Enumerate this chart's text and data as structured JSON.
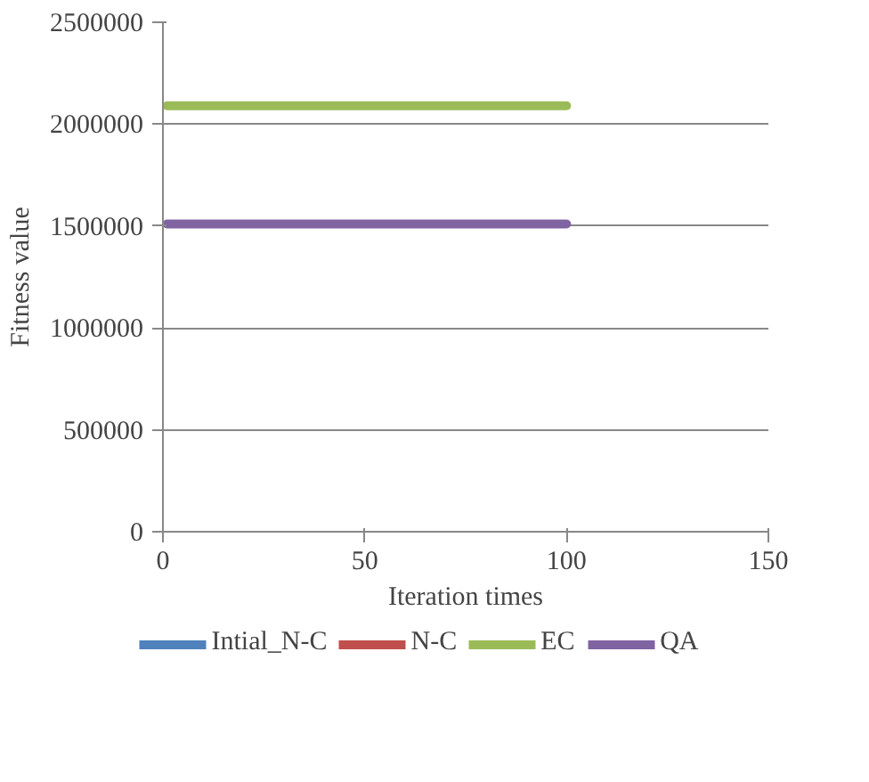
{
  "chart_data": {
    "type": "line",
    "xlabel": "Iteration times",
    "ylabel": "Fitness value",
    "x": [
      1,
      100
    ],
    "series": [
      {
        "name": "Intial_N-C",
        "color": "#4f81bd",
        "values": [
          null,
          null
        ]
      },
      {
        "name": "N-C",
        "color": "#c0504d",
        "values": [
          null,
          null
        ]
      },
      {
        "name": "EC",
        "color": "#9bbb59",
        "values": [
          2090000,
          2090000
        ]
      },
      {
        "name": "QA",
        "color": "#8064a2",
        "values": [
          1510000,
          1510000
        ]
      }
    ],
    "xlim": [
      0,
      150
    ],
    "xticks": [
      0,
      50,
      100,
      150
    ],
    "ylim": [
      0,
      2500000
    ],
    "yticks": [
      0,
      500000,
      1000000,
      1500000,
      2000000,
      2500000
    ],
    "grid": "y",
    "legend": "bottom",
    "marker": "none",
    "line_style": "solid"
  }
}
